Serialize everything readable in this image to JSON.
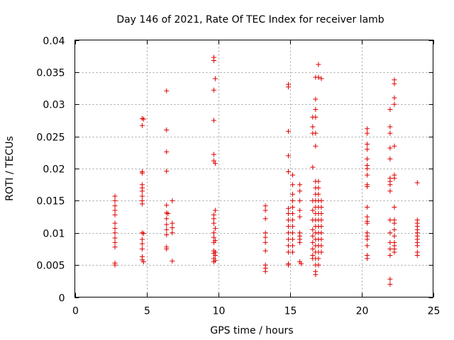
{
  "chart_data": {
    "type": "scatter",
    "title": "Day 146 of 2021, Rate Of TEC Index for receiver lamb",
    "xlabel": "GPS time / hours",
    "ylabel": "ROTI / TECUs",
    "xlim": [
      0,
      25
    ],
    "ylim": [
      0,
      0.04
    ],
    "x_ticks": [
      0,
      5,
      10,
      15,
      20,
      25
    ],
    "y_ticks": [
      0,
      0.005,
      0.01,
      0.015,
      0.02,
      0.025,
      0.03,
      0.035,
      0.04
    ],
    "x_tick_labels": [
      "0",
      "5",
      "10",
      "15",
      "20",
      "25"
    ],
    "y_tick_labels": [
      "0",
      "0.005",
      "0.01",
      "0.015",
      "0.02",
      "0.025",
      "0.03",
      "0.035",
      "0.04"
    ],
    "grid": true,
    "marker": "+",
    "color": "#e00000",
    "series": [
      {
        "name": "ROTI",
        "points": [
          [
            2.8,
            0.0157
          ],
          [
            2.8,
            0.015
          ],
          [
            2.8,
            0.0142
          ],
          [
            2.8,
            0.0135
          ],
          [
            2.8,
            0.0128
          ],
          [
            2.8,
            0.0115
          ],
          [
            2.8,
            0.0107
          ],
          [
            2.8,
            0.01
          ],
          [
            2.8,
            0.0092
          ],
          [
            2.8,
            0.0085
          ],
          [
            2.8,
            0.0078
          ],
          [
            2.8,
            0.0053
          ],
          [
            2.8,
            0.005
          ],
          [
            4.7,
            0.0278
          ],
          [
            4.8,
            0.0277
          ],
          [
            4.7,
            0.0267
          ],
          [
            4.7,
            0.0195
          ],
          [
            4.7,
            0.0193
          ],
          [
            4.7,
            0.0175
          ],
          [
            4.7,
            0.017
          ],
          [
            4.7,
            0.0165
          ],
          [
            4.7,
            0.0157
          ],
          [
            4.7,
            0.015
          ],
          [
            4.7,
            0.0145
          ],
          [
            4.7,
            0.01
          ],
          [
            4.8,
            0.0099
          ],
          [
            4.7,
            0.009
          ],
          [
            4.7,
            0.0083
          ],
          [
            4.7,
            0.0075
          ],
          [
            4.7,
            0.0063
          ],
          [
            4.7,
            0.0058
          ],
          [
            4.8,
            0.0055
          ],
          [
            6.4,
            0.0321
          ],
          [
            6.4,
            0.026
          ],
          [
            6.4,
            0.0226
          ],
          [
            6.4,
            0.0196
          ],
          [
            6.4,
            0.0143
          ],
          [
            6.4,
            0.0131
          ],
          [
            6.5,
            0.013
          ],
          [
            6.4,
            0.0122
          ],
          [
            6.4,
            0.0113
          ],
          [
            6.4,
            0.0105
          ],
          [
            6.4,
            0.0097
          ],
          [
            6.4,
            0.0078
          ],
          [
            6.4,
            0.0075
          ],
          [
            6.8,
            0.015
          ],
          [
            6.8,
            0.0115
          ],
          [
            6.8,
            0.0108
          ],
          [
            6.8,
            0.01
          ],
          [
            6.8,
            0.0056
          ],
          [
            9.7,
            0.0373
          ],
          [
            9.7,
            0.0368
          ],
          [
            9.8,
            0.034
          ],
          [
            9.7,
            0.0322
          ],
          [
            9.7,
            0.0275
          ],
          [
            9.7,
            0.0222
          ],
          [
            9.7,
            0.0212
          ],
          [
            9.8,
            0.0208
          ],
          [
            9.8,
            0.0135
          ],
          [
            9.7,
            0.0128
          ],
          [
            9.7,
            0.0122
          ],
          [
            9.7,
            0.0115
          ],
          [
            9.8,
            0.0107
          ],
          [
            9.7,
            0.01
          ],
          [
            9.7,
            0.0093
          ],
          [
            9.8,
            0.0088
          ],
          [
            9.7,
            0.0085
          ],
          [
            9.7,
            0.0072
          ],
          [
            9.8,
            0.007
          ],
          [
            9.7,
            0.0068
          ],
          [
            9.8,
            0.0065
          ],
          [
            9.7,
            0.006
          ],
          [
            9.8,
            0.0057
          ],
          [
            9.7,
            0.0055
          ],
          [
            13.3,
            0.0142
          ],
          [
            13.3,
            0.0135
          ],
          [
            13.3,
            0.0122
          ],
          [
            13.3,
            0.01
          ],
          [
            13.3,
            0.0093
          ],
          [
            13.3,
            0.0085
          ],
          [
            13.3,
            0.0072
          ],
          [
            13.3,
            0.005
          ],
          [
            13.3,
            0.0045
          ],
          [
            13.3,
            0.004
          ],
          [
            14.9,
            0.0331
          ],
          [
            14.9,
            0.0327
          ],
          [
            14.9,
            0.0258
          ],
          [
            14.9,
            0.022
          ],
          [
            14.9,
            0.0195
          ],
          [
            14.9,
            0.0138
          ],
          [
            14.9,
            0.013
          ],
          [
            14.9,
            0.012
          ],
          [
            14.9,
            0.011
          ],
          [
            14.9,
            0.01
          ],
          [
            14.9,
            0.009
          ],
          [
            14.9,
            0.008
          ],
          [
            14.9,
            0.007
          ],
          [
            14.9,
            0.0052
          ],
          [
            14.9,
            0.005
          ],
          [
            15.2,
            0.019
          ],
          [
            15.2,
            0.0175
          ],
          [
            15.2,
            0.016
          ],
          [
            15.2,
            0.015
          ],
          [
            15.2,
            0.014
          ],
          [
            15.2,
            0.013
          ],
          [
            15.2,
            0.012
          ],
          [
            15.2,
            0.011
          ],
          [
            15.2,
            0.01
          ],
          [
            15.2,
            0.009
          ],
          [
            15.2,
            0.008
          ],
          [
            15.2,
            0.007
          ],
          [
            15.7,
            0.0175
          ],
          [
            15.7,
            0.0165
          ],
          [
            15.7,
            0.015
          ],
          [
            15.7,
            0.0135
          ],
          [
            15.7,
            0.0125
          ],
          [
            15.7,
            0.01
          ],
          [
            15.7,
            0.0095
          ],
          [
            15.7,
            0.009
          ],
          [
            15.7,
            0.0085
          ],
          [
            15.7,
            0.0055
          ],
          [
            15.8,
            0.0052
          ],
          [
            16.6,
            0.028
          ],
          [
            16.6,
            0.0265
          ],
          [
            16.6,
            0.0255
          ],
          [
            16.6,
            0.0202
          ],
          [
            16.6,
            0.015
          ],
          [
            16.6,
            0.0135
          ],
          [
            16.6,
            0.012
          ],
          [
            16.6,
            0.0105
          ],
          [
            16.6,
            0.0095
          ],
          [
            16.6,
            0.0085
          ],
          [
            16.6,
            0.0075
          ],
          [
            16.6,
            0.0065
          ],
          [
            16.6,
            0.006
          ],
          [
            16.8,
            0.0342
          ],
          [
            16.8,
            0.0308
          ],
          [
            16.8,
            0.0292
          ],
          [
            16.8,
            0.028
          ],
          [
            16.8,
            0.0255
          ],
          [
            16.8,
            0.0235
          ],
          [
            16.8,
            0.018
          ],
          [
            16.8,
            0.017
          ],
          [
            16.8,
            0.016
          ],
          [
            16.8,
            0.015
          ],
          [
            16.8,
            0.014
          ],
          [
            16.8,
            0.013
          ],
          [
            16.8,
            0.012
          ],
          [
            16.8,
            0.011
          ],
          [
            16.8,
            0.01
          ],
          [
            16.8,
            0.009
          ],
          [
            16.8,
            0.008
          ],
          [
            16.8,
            0.007
          ],
          [
            16.8,
            0.006
          ],
          [
            16.8,
            0.005
          ],
          [
            16.8,
            0.004
          ],
          [
            16.8,
            0.0035
          ],
          [
            17.0,
            0.0362
          ],
          [
            17.0,
            0.0342
          ],
          [
            17.0,
            0.018
          ],
          [
            17.0,
            0.017
          ],
          [
            17.0,
            0.016
          ],
          [
            17.0,
            0.015
          ],
          [
            17.0,
            0.014
          ],
          [
            17.0,
            0.013
          ],
          [
            17.0,
            0.012
          ],
          [
            17.0,
            0.011
          ],
          [
            17.0,
            0.01
          ],
          [
            17.0,
            0.009
          ],
          [
            17.0,
            0.008
          ],
          [
            17.0,
            0.007
          ],
          [
            17.0,
            0.006
          ],
          [
            17.0,
            0.005
          ],
          [
            17.2,
            0.034
          ],
          [
            17.2,
            0.015
          ],
          [
            17.2,
            0.014
          ],
          [
            17.2,
            0.013
          ],
          [
            17.2,
            0.012
          ],
          [
            17.2,
            0.011
          ],
          [
            17.2,
            0.01
          ],
          [
            17.2,
            0.009
          ],
          [
            17.2,
            0.008
          ],
          [
            17.2,
            0.007
          ],
          [
            20.4,
            0.0262
          ],
          [
            20.4,
            0.0255
          ],
          [
            20.4,
            0.0238
          ],
          [
            20.4,
            0.023
          ],
          [
            20.4,
            0.0215
          ],
          [
            20.4,
            0.0205
          ],
          [
            20.4,
            0.02
          ],
          [
            20.4,
            0.019
          ],
          [
            20.4,
            0.0175
          ],
          [
            20.4,
            0.0172
          ],
          [
            20.4,
            0.014
          ],
          [
            20.4,
            0.0125
          ],
          [
            20.4,
            0.0118
          ],
          [
            20.4,
            0.0115
          ],
          [
            20.4,
            0.01
          ],
          [
            20.4,
            0.0095
          ],
          [
            20.4,
            0.009
          ],
          [
            20.4,
            0.008
          ],
          [
            20.4,
            0.0065
          ],
          [
            20.4,
            0.006
          ],
          [
            22.0,
            0.0292
          ],
          [
            22.0,
            0.0265
          ],
          [
            22.0,
            0.0255
          ],
          [
            22.0,
            0.0232
          ],
          [
            22.0,
            0.0215
          ],
          [
            22.0,
            0.0185
          ],
          [
            22.0,
            0.018
          ],
          [
            22.0,
            0.0175
          ],
          [
            22.0,
            0.0165
          ],
          [
            22.0,
            0.012
          ],
          [
            22.0,
            0.01
          ],
          [
            22.0,
            0.0085
          ],
          [
            22.0,
            0.0075
          ],
          [
            22.0,
            0.0065
          ],
          [
            22.0,
            0.0028
          ],
          [
            22.0,
            0.002
          ],
          [
            22.3,
            0.0338
          ],
          [
            22.3,
            0.0332
          ],
          [
            22.3,
            0.031
          ],
          [
            22.3,
            0.03
          ],
          [
            22.3,
            0.0235
          ],
          [
            22.3,
            0.019
          ],
          [
            22.3,
            0.0185
          ],
          [
            22.3,
            0.014
          ],
          [
            22.3,
            0.012
          ],
          [
            22.3,
            0.0115
          ],
          [
            22.3,
            0.0105
          ],
          [
            22.3,
            0.0095
          ],
          [
            22.3,
            0.0085
          ],
          [
            22.3,
            0.008
          ],
          [
            22.3,
            0.0075
          ],
          [
            22.3,
            0.007
          ],
          [
            23.9,
            0.0178
          ],
          [
            23.9,
            0.012
          ],
          [
            23.9,
            0.0115
          ],
          [
            23.9,
            0.011
          ],
          [
            23.9,
            0.0105
          ],
          [
            23.9,
            0.01
          ],
          [
            23.9,
            0.0095
          ],
          [
            23.9,
            0.009
          ],
          [
            23.9,
            0.0085
          ],
          [
            23.9,
            0.008
          ],
          [
            23.9,
            0.007
          ],
          [
            23.9,
            0.0065
          ]
        ]
      }
    ]
  }
}
